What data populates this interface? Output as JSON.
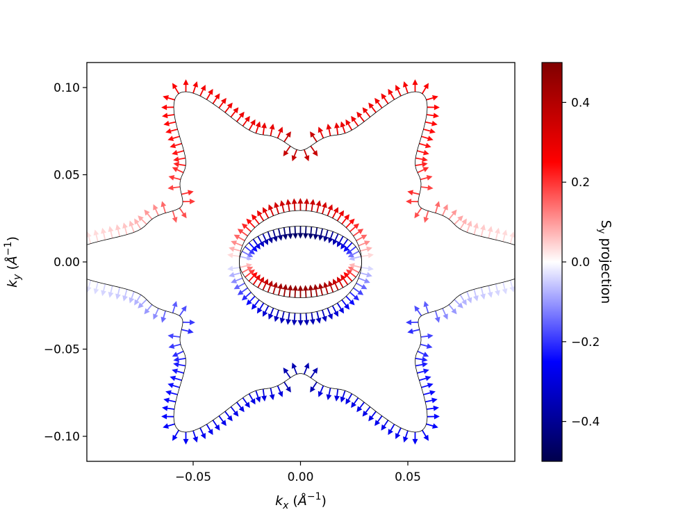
{
  "chart_data": {
    "type": "quiver",
    "title": "",
    "xlabel": "k_x (Å^-1)",
    "ylabel": "k_y (Å^-1)",
    "xlim": [
      -0.099,
      0.099
    ],
    "ylim": [
      -0.115,
      0.115
    ],
    "x_ticks": [
      -0.05,
      0.0,
      0.05
    ],
    "x_tick_labels": [
      "−0.05",
      "0.00",
      "0.05"
    ],
    "y_ticks": [
      -0.1,
      -0.05,
      0.0,
      0.05,
      0.1
    ],
    "y_tick_labels": [
      "−0.10",
      "−0.05",
      "0.00",
      "0.05",
      "0.10"
    ],
    "grid": false,
    "colormap": "seismic",
    "colorbar": {
      "label": "S_y projection",
      "range": [
        -0.5,
        0.5
      ],
      "ticks": [
        -0.4,
        -0.2,
        0.0,
        0.2,
        0.4
      ],
      "tick_labels": [
        "−0.4",
        "−0.2",
        "0.0",
        "0.2",
        "0.4"
      ]
    },
    "contours": [
      {
        "name": "inner pocket",
        "shape": "ellipse",
        "rx": 0.0285,
        "ry": 0.0205
      },
      {
        "name": "middle pocket",
        "shape": "ellipse",
        "rx": 0.0285,
        "ry": 0.0295
      },
      {
        "name": "outer star",
        "shape": "six-pointed star",
        "tip_radius": 0.102,
        "valley_radius": 0.062,
        "inner_lobe_radius": 0.045
      }
    ],
    "spin_texture": {
      "inner_pocket": "arrows point inward; Sy ≈ +0.45 on lower half, −0.45 on upper half",
      "middle_pocket": "arrows point outward; Sy ≈ +0.35 on upper half, −0.35 on lower half",
      "outer_star": "arrows along normal; Sy positive on upper half, negative on lower half"
    }
  }
}
